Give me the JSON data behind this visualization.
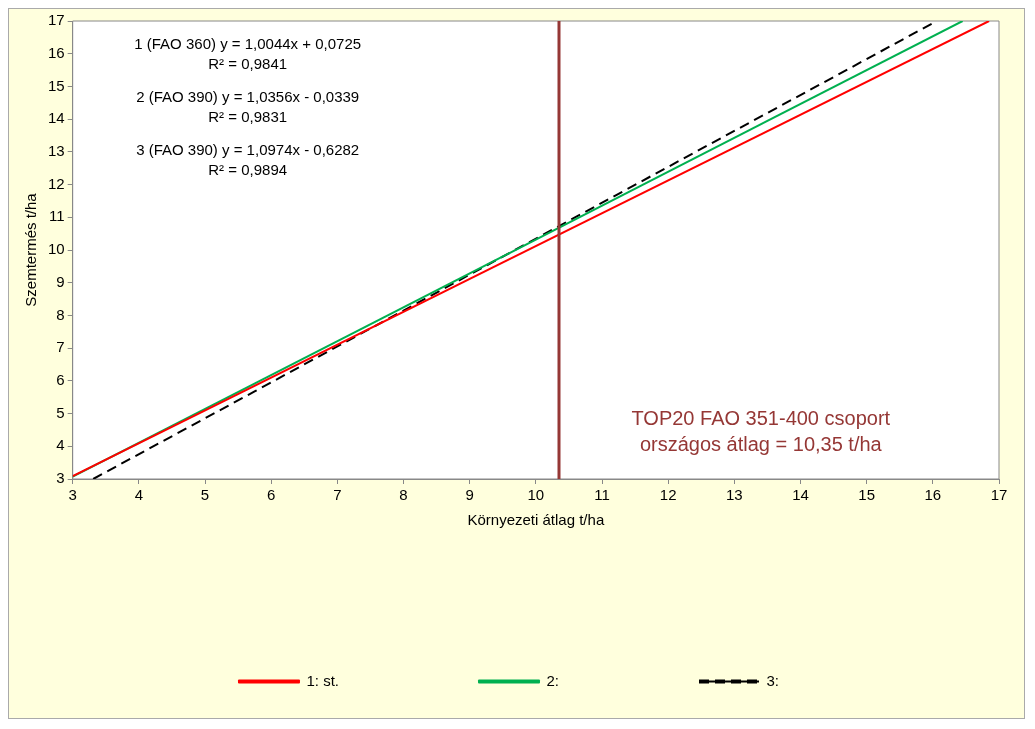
{
  "chart_data": {
    "type": "line",
    "xlabel": "Környezeti átlag t/ha",
    "ylabel": "Szemtermés t/ha",
    "xlim": [
      3,
      17
    ],
    "xticks": [
      3,
      4,
      5,
      6,
      7,
      8,
      9,
      10,
      11,
      12,
      13,
      14,
      15,
      16,
      17
    ],
    "ylim": [
      3,
      17
    ],
    "yticks": [
      3,
      4,
      5,
      6,
      7,
      8,
      9,
      10,
      11,
      12,
      13,
      14,
      15,
      16,
      17
    ],
    "grid": false,
    "legend": "bottom",
    "marker": "none",
    "series": [
      {
        "name": "1: st.",
        "color": "#ff0000",
        "x": [
          3,
          16.85
        ],
        "values": [
          3.09,
          17
        ],
        "line_style": "solid"
      },
      {
        "name": "2:",
        "color": "#00b050",
        "x": [
          3,
          16.45
        ],
        "values": [
          3.07,
          17
        ],
        "line_style": "solid"
      },
      {
        "name": "3:",
        "color": "#000000",
        "x": [
          3.31,
          16.06
        ],
        "values": [
          3,
          17
        ],
        "line_style": "dashed"
      }
    ],
    "ref_lines": [
      {
        "axis": "x",
        "value": 10.35,
        "label": "TOP20 FAO 351-400 csoport\nországos átlag = 10,35 t/ha",
        "color": "#953735"
      }
    ],
    "annotations": [
      "1 (FAO 360) y = 1,0044x + 0,0725\nR² = 0,9841",
      "2 (FAO 390) y = 1,0356x - 0,0339\nR² = 0,9831",
      "3 (FAO 390) y = 1,0974x - 0,6282\nR² = 0,9894"
    ]
  }
}
